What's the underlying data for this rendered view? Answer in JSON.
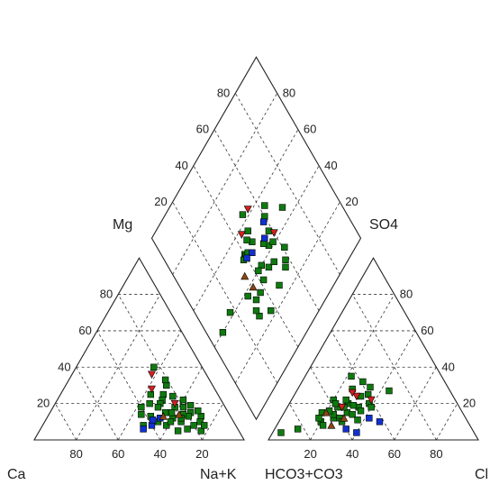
{
  "chart_data": {
    "type": "scatter",
    "subtype": "piper-trilinear",
    "title": "",
    "labels": {
      "ca": "Ca",
      "mg": "Mg",
      "nak": "Na+K",
      "hco3": "HCO3+CO3",
      "cl": "Cl",
      "so4": "SO4"
    },
    "ticks": [
      "20",
      "40",
      "60",
      "80"
    ],
    "grid": true,
    "colors": {
      "square_green": "#0f7a0f",
      "square_blue": "#1030d0",
      "triangle_red": "#d42020",
      "triangle_brown": "#8b4513"
    },
    "series": [
      {
        "marker": "square",
        "color": "#0f7a0f",
        "cation_points": [
          [
            14,
            13
          ],
          [
            14,
            16
          ],
          [
            18,
            15
          ],
          [
            20,
            13
          ],
          [
            16,
            19
          ],
          [
            22,
            14
          ],
          [
            18,
            22
          ],
          [
            24,
            18
          ],
          [
            20,
            8
          ],
          [
            25,
            10
          ],
          [
            28,
            12
          ],
          [
            30,
            15
          ],
          [
            26,
            25
          ],
          [
            28,
            22
          ],
          [
            30,
            20
          ],
          [
            32,
            18
          ],
          [
            22,
            30
          ],
          [
            34,
            12
          ],
          [
            24,
            6
          ],
          [
            29,
            5
          ],
          [
            33,
            8
          ],
          [
            36,
            10
          ],
          [
            38,
            13
          ],
          [
            21,
            33
          ],
          [
            23,
            40
          ],
          [
            42,
            14
          ],
          [
            18,
            5
          ],
          [
            16,
            10
          ],
          [
            20,
            18
          ],
          [
            35,
            20
          ],
          [
            30,
            10
          ],
          [
            27,
            15
          ],
          [
            24,
            12
          ],
          [
            44,
            8
          ],
          [
            22,
            24
          ],
          [
            40,
            18
          ],
          [
            32,
            25
          ],
          [
            15,
            8
          ]
        ],
        "anion_points": [
          [
            20,
            10
          ],
          [
            22,
            8
          ],
          [
            25,
            12
          ],
          [
            18,
            15
          ],
          [
            24,
            18
          ],
          [
            28,
            20
          ],
          [
            30,
            15
          ],
          [
            26,
            28
          ],
          [
            32,
            24
          ],
          [
            34,
            18
          ],
          [
            20,
            22
          ],
          [
            36,
            16
          ],
          [
            28,
            12
          ],
          [
            30,
            10
          ],
          [
            24,
            14
          ],
          [
            22,
            20
          ],
          [
            35,
            25
          ],
          [
            38,
            20
          ],
          [
            40,
            18
          ],
          [
            29,
            32
          ],
          [
            22,
            35
          ],
          [
            44,
            27
          ],
          [
            33,
            14
          ],
          [
            27,
            18
          ],
          [
            31,
            19
          ],
          [
            26,
            22
          ],
          [
            21,
            16
          ],
          [
            37,
            11
          ],
          [
            18,
            12
          ],
          [
            34,
            29
          ],
          [
            4,
            4
          ],
          [
            11,
            6
          ]
        ]
      },
      {
        "marker": "square",
        "color": "#1030d0",
        "cation_points": [
          [
            34,
            12
          ],
          [
            45,
            6
          ],
          [
            40,
            8
          ],
          [
            38,
            11
          ]
        ],
        "anion_points": [
          [
            42,
            12
          ],
          [
            48,
            10
          ],
          [
            40,
            4
          ],
          [
            34,
            6
          ]
        ]
      },
      {
        "marker": "triangle-down",
        "color": "#d42020",
        "cation_points": [
          [
            30,
            28
          ],
          [
            26,
            36
          ],
          [
            23,
            20
          ]
        ],
        "anion_points": [
          [
            26,
            18
          ],
          [
            30,
            24
          ],
          [
            38,
            22
          ],
          [
            27,
            26
          ]
        ]
      },
      {
        "marker": "triangle",
        "color": "#8b4513",
        "cation_points": [
          [
            24,
            14
          ],
          [
            32,
            13
          ]
        ],
        "anion_points": [
          [
            20,
            15
          ],
          [
            26,
            8
          ],
          [
            30,
            12
          ]
        ]
      }
    ]
  }
}
